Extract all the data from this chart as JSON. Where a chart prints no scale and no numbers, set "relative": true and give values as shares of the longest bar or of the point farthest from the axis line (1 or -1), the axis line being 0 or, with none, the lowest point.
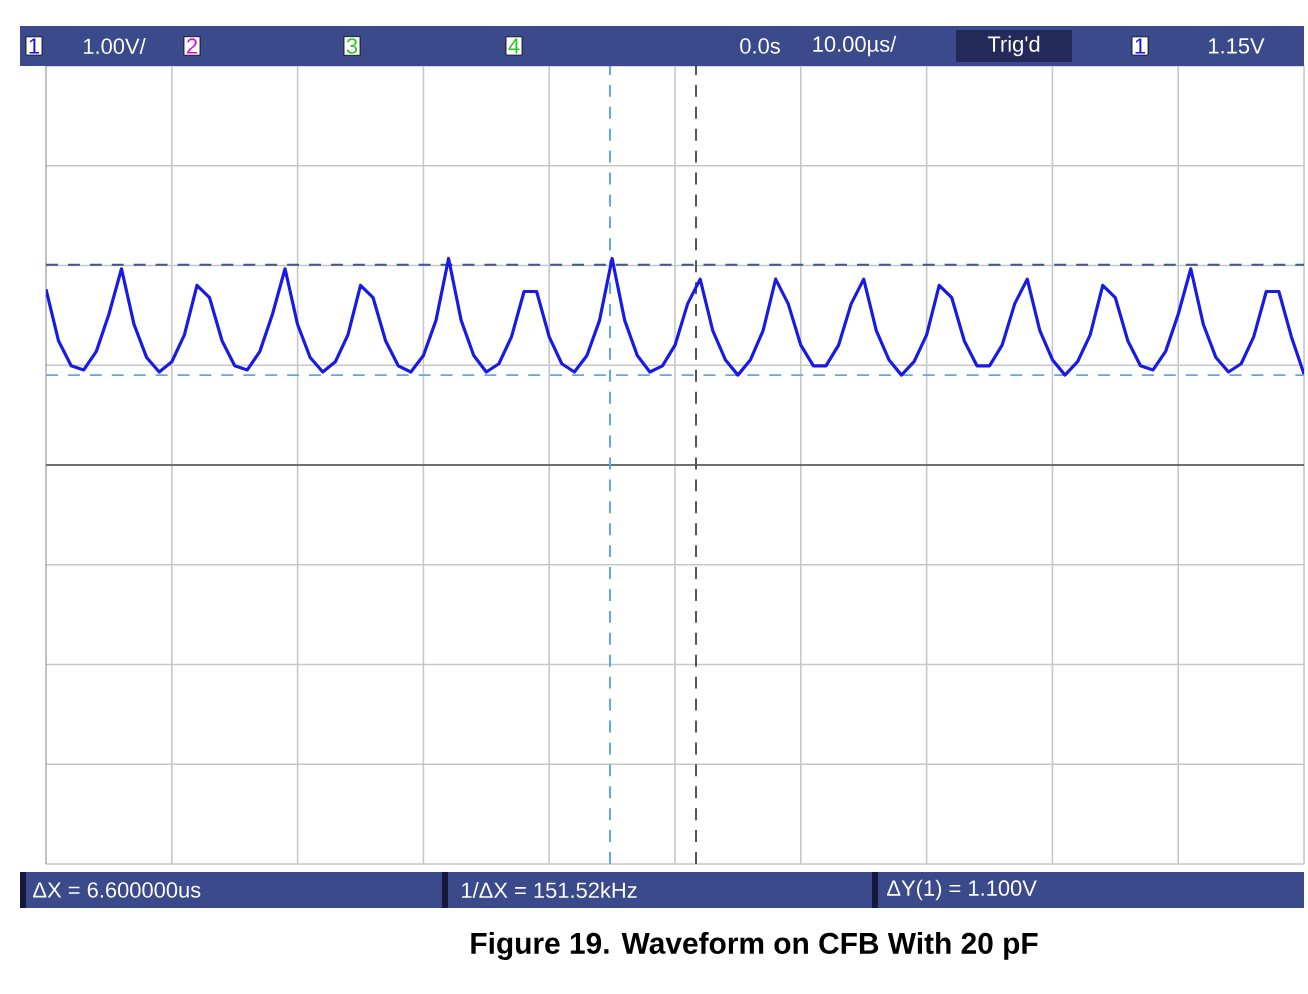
{
  "chart_data": {
    "type": "line",
    "title": "Figure 19. Waveform on CFB With 20 pF",
    "annotations": [
      "1",
      "1.00V/",
      "2",
      "3",
      "4",
      "0.0s",
      "10.00µs/",
      "Trig'd",
      "1",
      "1.15V",
      "ΔX = 6.600000us",
      "1/ΔX = 151.52kHz",
      "ΔY(1) = 1.100V"
    ],
    "relative": true,
    "grid": true,
    "categories": [
      null,
      null,
      null,
      null,
      null,
      null,
      null,
      null,
      null,
      null,
      null,
      null,
      null,
      null,
      null,
      null,
      null,
      null,
      null,
      null,
      null,
      null,
      null,
      null,
      null,
      null,
      null,
      null,
      null,
      null,
      null,
      null,
      null,
      null,
      null,
      null,
      null,
      null,
      null,
      null,
      null,
      null,
      null,
      null,
      null,
      null,
      null,
      null,
      null,
      null,
      null,
      null,
      null,
      null,
      null,
      null,
      null,
      null,
      null,
      null,
      null,
      null,
      null,
      null,
      null,
      null,
      null,
      null,
      null,
      null,
      null,
      null,
      null,
      null,
      null,
      null,
      null,
      null,
      null,
      null,
      null,
      null,
      null,
      null,
      null,
      null,
      null,
      null,
      null,
      null,
      null,
      null,
      null,
      null,
      null,
      null,
      null,
      null,
      null,
      null,
      null
    ],
    "ref_lines": [
      {
        "axis": "y",
        "value": 0.97,
        "color": "#3a5a8a",
        "line_style": "dashed"
      },
      {
        "axis": "y",
        "value": 0.435,
        "color": "#5fa8e8",
        "line_style": "dashed"
      }
    ],
    "series": [
      {
        "color": "#1a1ae6",
        "values": [
          0.85,
          0.6,
          0.48,
          0.46,
          0.55,
          0.73,
          0.95,
          0.68,
          0.52,
          0.45,
          0.5,
          0.63,
          0.87,
          0.81,
          0.6,
          0.48,
          0.46,
          0.55,
          0.73,
          0.95,
          0.68,
          0.52,
          0.45,
          0.5,
          0.63,
          0.87,
          0.81,
          0.6,
          0.48,
          0.45,
          0.53,
          0.7,
          1.0,
          0.7,
          0.53,
          0.45,
          0.49,
          0.62,
          0.84,
          0.84,
          0.62,
          0.49,
          0.45,
          0.53,
          0.7,
          1.0,
          0.7,
          0.53,
          0.45,
          0.48,
          0.58,
          0.78,
          0.9,
          0.65,
          0.51,
          0.435,
          0.51,
          0.65,
          0.9,
          0.78,
          0.58,
          0.48,
          0.48,
          0.58,
          0.78,
          0.9,
          0.65,
          0.51,
          0.435,
          0.5,
          0.63,
          0.87,
          0.81,
          0.6,
          0.48,
          0.48,
          0.58,
          0.78,
          0.9,
          0.65,
          0.51,
          0.435,
          0.5,
          0.63,
          0.87,
          0.81,
          0.6,
          0.48,
          0.46,
          0.55,
          0.73,
          0.95,
          0.68,
          0.52,
          0.45,
          0.49,
          0.62,
          0.84,
          0.84,
          0.62,
          0.44
        ]
      }
    ]
  }
}
